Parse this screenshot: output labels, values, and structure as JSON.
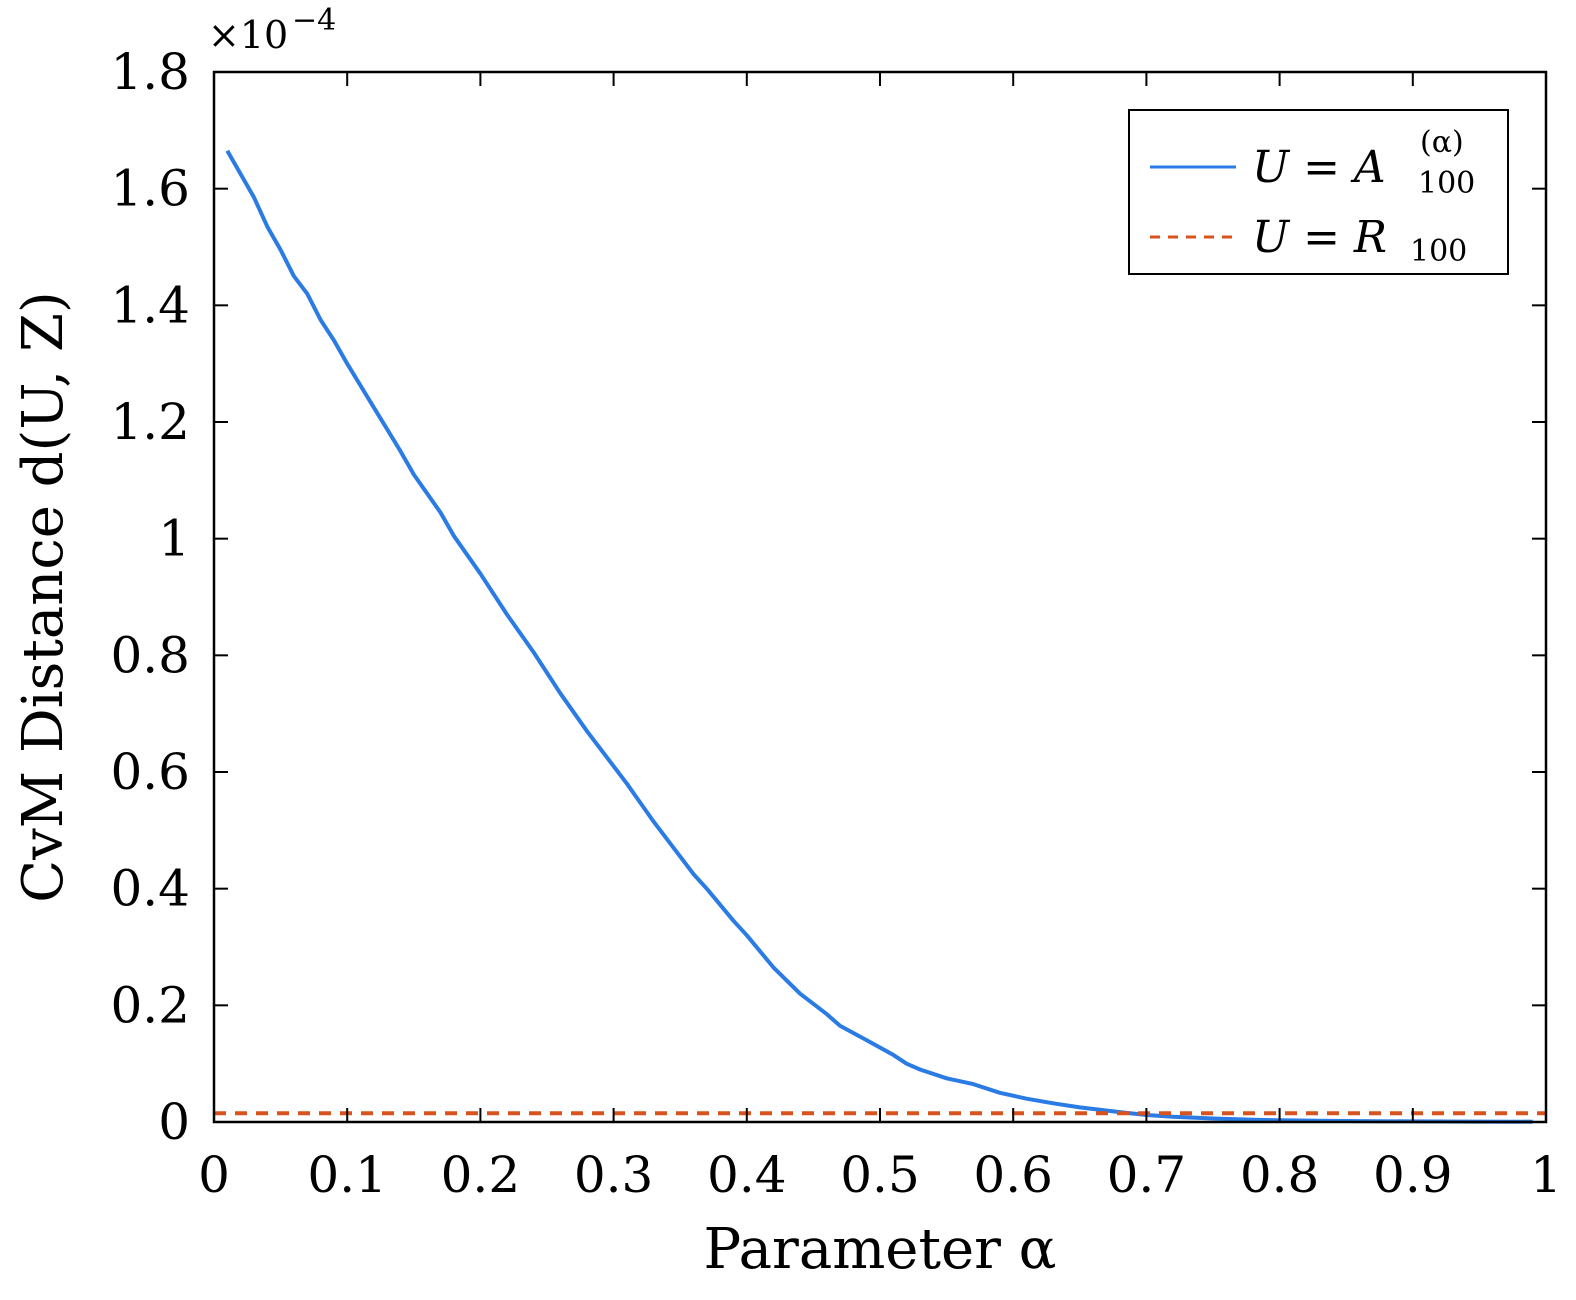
{
  "chart_data": {
    "type": "line",
    "xlabel": "Parameter α",
    "ylabel": "CvM Distance d(U, Z)",
    "y_exponent_label": "×10",
    "y_exponent_power": "−4",
    "xlim": [
      0,
      1
    ],
    "ylim": [
      0,
      1.8
    ],
    "x_ticks": [
      0,
      0.1,
      0.2,
      0.3,
      0.4,
      0.5,
      0.6,
      0.7,
      0.8,
      0.9,
      1
    ],
    "x_tick_labels": [
      "0",
      "0.1",
      "0.2",
      "0.3",
      "0.4",
      "0.5",
      "0.6",
      "0.7",
      "0.8",
      "0.9",
      "1"
    ],
    "y_ticks": [
      0,
      0.2,
      0.4,
      0.6,
      0.8,
      1,
      1.2,
      1.4,
      1.6,
      1.8
    ],
    "y_tick_labels": [
      "0",
      "0.2",
      "0.4",
      "0.6",
      "0.8",
      "1",
      "1.2",
      "1.4",
      "1.6",
      "1.8"
    ],
    "grid": false,
    "legend_position": "top-right",
    "series": [
      {
        "name": "U = A_100^(α)",
        "legend_main": "U = A",
        "legend_sub": "100",
        "legend_sup": "(α)",
        "color": "#2a7be4",
        "style": "solid",
        "x": [
          0.01,
          0.03,
          0.04,
          0.05,
          0.06,
          0.07,
          0.08,
          0.09,
          0.1,
          0.12,
          0.14,
          0.15,
          0.17,
          0.18,
          0.2,
          0.22,
          0.24,
          0.26,
          0.28,
          0.3,
          0.31,
          0.33,
          0.35,
          0.36,
          0.37,
          0.39,
          0.4,
          0.42,
          0.44,
          0.46,
          0.47,
          0.49,
          0.51,
          0.52,
          0.53,
          0.55,
          0.57,
          0.59,
          0.61,
          0.63,
          0.65,
          0.68,
          0.7,
          0.72,
          0.75,
          0.78,
          0.8,
          0.83,
          0.86,
          0.9,
          0.94,
          0.99
        ],
        "y": [
          1.665,
          1.585,
          1.535,
          1.495,
          1.45,
          1.42,
          1.375,
          1.34,
          1.3,
          1.225,
          1.15,
          1.11,
          1.045,
          1.005,
          0.94,
          0.87,
          0.805,
          0.735,
          0.67,
          0.61,
          0.58,
          0.515,
          0.455,
          0.425,
          0.4,
          0.345,
          0.32,
          0.265,
          0.22,
          0.185,
          0.165,
          0.14,
          0.115,
          0.1,
          0.09,
          0.075,
          0.065,
          0.05,
          0.04,
          0.032,
          0.025,
          0.017,
          0.012,
          0.009,
          0.006,
          0.004,
          0.003,
          0.002,
          0.0015,
          0.001,
          0.0007,
          0.0005
        ]
      },
      {
        "name": "U = R_100",
        "legend_main": "U = R",
        "legend_sub": "100",
        "legend_sup": "",
        "color": "#d9531e",
        "style": "dashed",
        "x": [
          0,
          1
        ],
        "y": [
          0.015,
          0.015
        ]
      }
    ]
  }
}
